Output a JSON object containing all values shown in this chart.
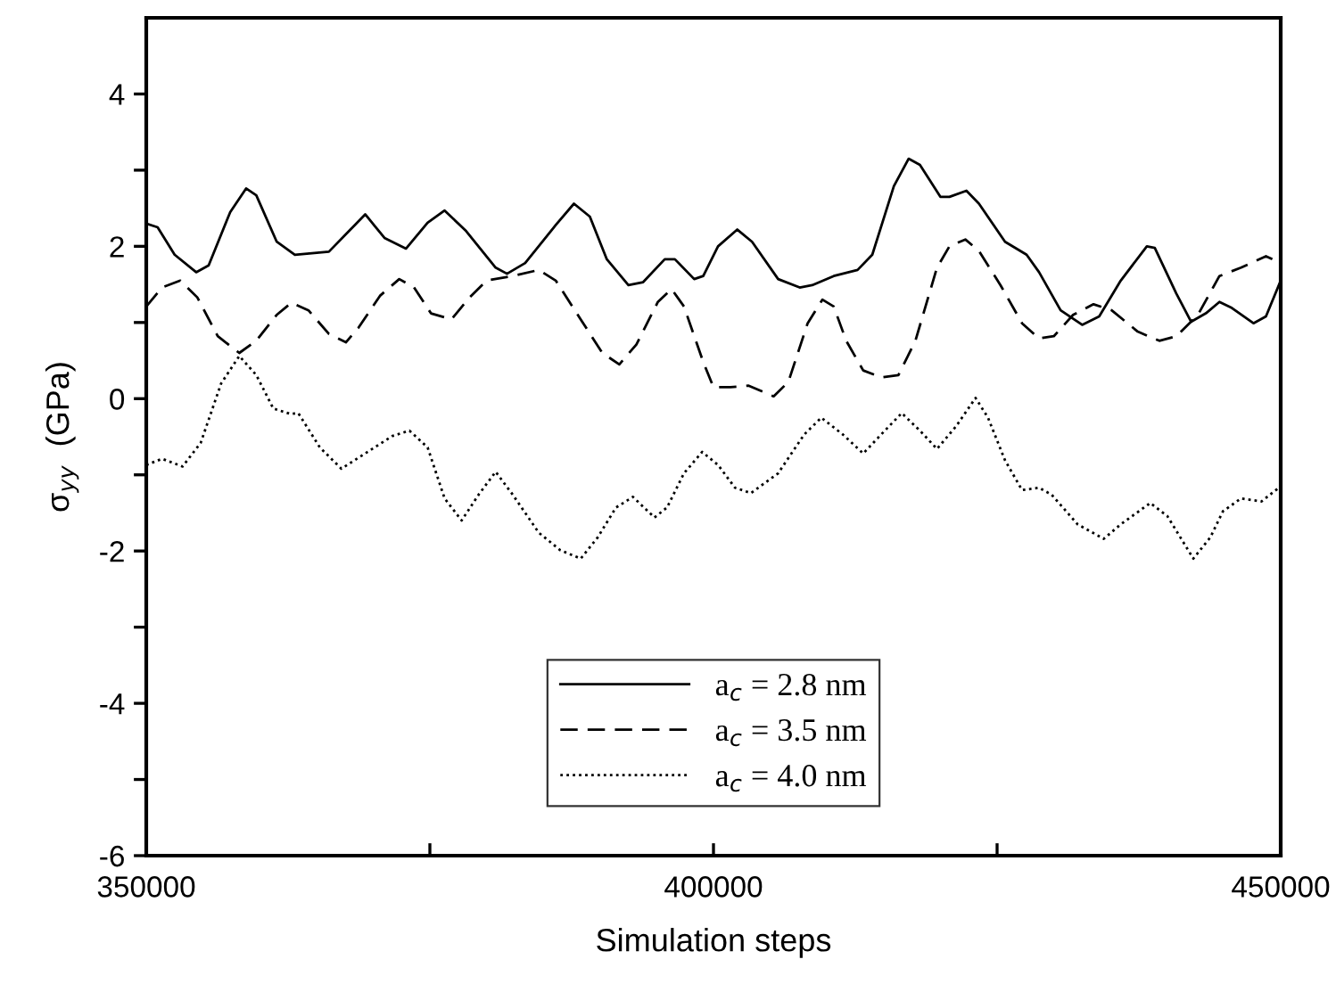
{
  "chart_data": {
    "type": "line",
    "xlabel": "Simulation steps",
    "ylabel": "σ$_{yy}$  (GPa)",
    "xlim": [
      350000,
      450000
    ],
    "ylim": [
      -6,
      5
    ],
    "xticks": [
      350000,
      {
        "value": 375000,
        "label": null
      },
      400000,
      {
        "value": 425000,
        "label": null
      },
      450000
    ],
    "yticks": [
      -6,
      {
        "value": -5,
        "label": null
      },
      -4,
      {
        "value": -3,
        "label": null
      },
      -2,
      {
        "value": -1,
        "label": null
      },
      0,
      {
        "value": 1,
        "label": null
      },
      2,
      {
        "value": 3,
        "label": null
      },
      4
    ],
    "grid": false,
    "legend": "bottom",
    "marker": "none",
    "series": [
      {
        "name": "a$_{c}$ = 2.8 nm",
        "color": "#000000",
        "line_style": "solid",
        "x": [
          350000,
          351000,
          352500,
          354400,
          355500,
          357400,
          358800,
          359700,
          361500,
          363100,
          366100,
          368000,
          369300,
          371000,
          372900,
          374800,
          376300,
          378200,
          380800,
          381800,
          383400,
          386100,
          387700,
          389100,
          390600,
          392500,
          393800,
          395700,
          396600,
          398300,
          399100,
          400400,
          402100,
          403400,
          405700,
          407600,
          408700,
          410600,
          412700,
          414000,
          415900,
          417200,
          418200,
          420000,
          420800,
          422300,
          423400,
          425700,
          427600,
          428700,
          430600,
          432500,
          434000,
          435900,
          438200,
          438900,
          440800,
          442100,
          443400,
          444600,
          445700,
          447600,
          448700,
          450000
        ],
        "values": [
          2.3,
          2.25,
          1.89,
          1.66,
          1.75,
          2.45,
          2.76,
          2.67,
          2.06,
          1.89,
          1.93,
          2.22,
          2.42,
          2.11,
          1.97,
          2.31,
          2.47,
          2.2,
          1.72,
          1.64,
          1.78,
          2.28,
          2.56,
          2.39,
          1.83,
          1.49,
          1.53,
          1.83,
          1.83,
          1.57,
          1.61,
          2.0,
          2.22,
          2.06,
          1.57,
          1.46,
          1.49,
          1.61,
          1.69,
          1.89,
          2.79,
          3.15,
          3.07,
          2.65,
          2.65,
          2.73,
          2.56,
          2.06,
          1.89,
          1.66,
          1.16,
          0.97,
          1.08,
          1.55,
          2.0,
          1.98,
          1.38,
          1.01,
          1.12,
          1.27,
          1.19,
          0.99,
          1.08,
          1.55
        ]
      },
      {
        "name": "a$_{c}$ = 3.5 nm",
        "color": "#000000",
        "line_style": "dashed",
        "x": [
          350000,
          351400,
          353000,
          354500,
          356300,
          358200,
          359700,
          361500,
          362800,
          364300,
          366100,
          367600,
          368700,
          370600,
          372300,
          373600,
          375100,
          376900,
          378500,
          380000,
          382300,
          384600,
          386100,
          388300,
          390200,
          391700,
          393200,
          395100,
          396300,
          397400,
          399100,
          400000,
          401500,
          403100,
          405300,
          406600,
          408300,
          409600,
          410600,
          411700,
          413200,
          414800,
          416300,
          417800,
          419700,
          420800,
          422200,
          423400,
          425300,
          427200,
          428700,
          430000,
          431700,
          433500,
          435100,
          437400,
          439300,
          440800,
          442700,
          444600,
          446500,
          448700,
          450000
        ],
        "values": [
          1.21,
          1.46,
          1.55,
          1.33,
          0.82,
          0.6,
          0.76,
          1.1,
          1.26,
          1.16,
          0.85,
          0.74,
          0.93,
          1.35,
          1.57,
          1.46,
          1.12,
          1.04,
          1.33,
          1.55,
          1.61,
          1.69,
          1.55,
          1.04,
          0.6,
          0.45,
          0.71,
          1.27,
          1.44,
          1.21,
          0.48,
          0.15,
          0.15,
          0.17,
          0.03,
          0.22,
          0.99,
          1.3,
          1.21,
          0.76,
          0.37,
          0.28,
          0.31,
          0.76,
          1.72,
          2.0,
          2.09,
          1.94,
          1.49,
          0.99,
          0.79,
          0.82,
          1.1,
          1.24,
          1.16,
          0.88,
          0.76,
          0.82,
          1.1,
          1.61,
          1.72,
          1.87,
          1.78
        ]
      },
      {
        "name": "a$_{c}$ = 4.0 nm",
        "color": "#000000",
        "line_style": "dotted",
        "x": [
          350000,
          351400,
          353200,
          354800,
          356600,
          358200,
          359700,
          361200,
          362700,
          363400,
          365300,
          367200,
          369500,
          371700,
          373200,
          374800,
          376300,
          377800,
          379300,
          380800,
          382300,
          384600,
          386500,
          388300,
          389800,
          391400,
          392900,
          394800,
          395900,
          397400,
          399000,
          400400,
          401900,
          403300,
          405700,
          408000,
          409500,
          411400,
          413200,
          415100,
          416600,
          418200,
          419700,
          421400,
          423100,
          424200,
          425700,
          427200,
          428700,
          429800,
          432100,
          434400,
          435900,
          438500,
          440000,
          442300,
          443800,
          444900,
          446500,
          448300,
          450000
        ],
        "values": [
          -0.87,
          -0.79,
          -0.89,
          -0.58,
          0.2,
          0.56,
          0.31,
          -0.13,
          -0.2,
          -0.19,
          -0.64,
          -0.92,
          -0.7,
          -0.49,
          -0.42,
          -0.64,
          -1.31,
          -1.6,
          -1.26,
          -0.96,
          -1.26,
          -1.76,
          -1.99,
          -2.1,
          -1.82,
          -1.43,
          -1.29,
          -1.56,
          -1.43,
          -0.98,
          -0.7,
          -0.87,
          -1.17,
          -1.24,
          -0.98,
          -0.47,
          -0.25,
          -0.47,
          -0.72,
          -0.42,
          -0.19,
          -0.42,
          -0.66,
          -0.36,
          0.01,
          -0.25,
          -0.81,
          -1.2,
          -1.17,
          -1.26,
          -1.65,
          -1.84,
          -1.65,
          -1.37,
          -1.54,
          -2.1,
          -1.82,
          -1.48,
          -1.31,
          -1.35,
          -1.15
        ]
      }
    ]
  }
}
